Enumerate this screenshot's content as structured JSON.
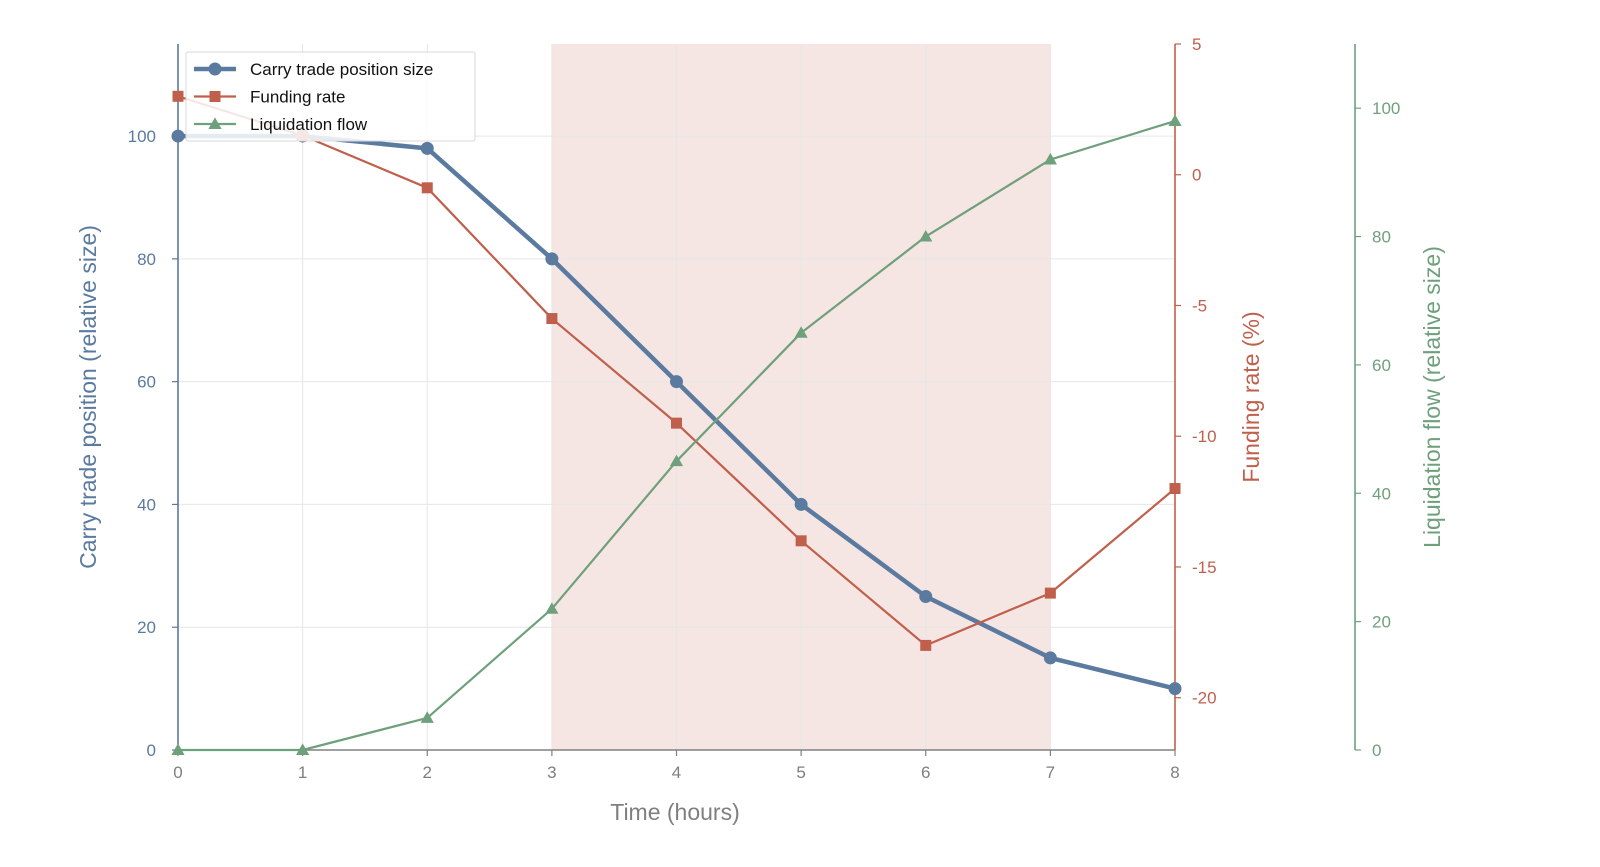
{
  "chart_data": {
    "type": "line",
    "title": "",
    "xlabel": "Time (hours)",
    "x": [
      0,
      1,
      2,
      3,
      4,
      5,
      6,
      7,
      8
    ],
    "xlim": [
      0,
      8
    ],
    "x_ticks": [
      "0",
      "1",
      "2",
      "3",
      "4",
      "5",
      "6",
      "7",
      "8"
    ],
    "grid": true,
    "legend_position": "top-left",
    "shaded_region": {
      "x_start": 3,
      "x_end": 7,
      "color": "#f6e6e3"
    },
    "series": [
      {
        "name": "Carry trade position size",
        "axis": "left",
        "marker": "circle",
        "color": "#5b7aa0",
        "values": [
          100,
          100,
          98,
          80,
          60,
          40,
          25,
          15,
          10
        ]
      },
      {
        "name": "Funding rate",
        "axis": "right1",
        "marker": "square",
        "color": "#c0604c",
        "values": [
          3,
          1.5,
          -0.5,
          -5.5,
          -9.5,
          -14,
          -18,
          -16,
          -12
        ]
      },
      {
        "name": "Liquidation flow",
        "axis": "right2",
        "marker": "triangle",
        "color": "#6fa07c",
        "values": [
          0,
          0,
          5,
          22,
          45,
          65,
          80,
          92,
          98
        ]
      }
    ],
    "axes": {
      "left": {
        "label": "Carry trade position (relative size)",
        "ylim": [
          0,
          115
        ],
        "ticks": [
          0,
          20,
          40,
          60,
          80,
          100
        ],
        "color": "#5b7aa0"
      },
      "right1": {
        "label": "Funding rate (%)",
        "ylim": [
          -22,
          5
        ],
        "ticks": [
          5,
          0,
          -5,
          -10,
          -15,
          -20
        ],
        "color": "#c0604c"
      },
      "right2": {
        "label": "Liquidation flow (relative size)",
        "ylim": [
          0,
          110
        ],
        "ticks": [
          0,
          20,
          40,
          60,
          80,
          100
        ],
        "color": "#6fa07c"
      }
    }
  }
}
